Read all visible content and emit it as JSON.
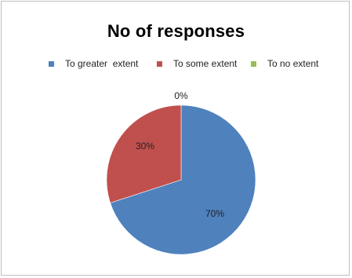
{
  "chart_data": {
    "type": "pie",
    "title": "No of responses",
    "legend_position": "top",
    "slices": [
      {
        "label": "To greater  extent",
        "value": 70,
        "display": "70%",
        "color": "#4F81BD"
      },
      {
        "label": "To some extent",
        "value": 30,
        "display": "30%",
        "color": "#C0504D"
      },
      {
        "label": "To no extent",
        "value": 0,
        "display": "0%",
        "color": "#9BBB59"
      }
    ]
  }
}
